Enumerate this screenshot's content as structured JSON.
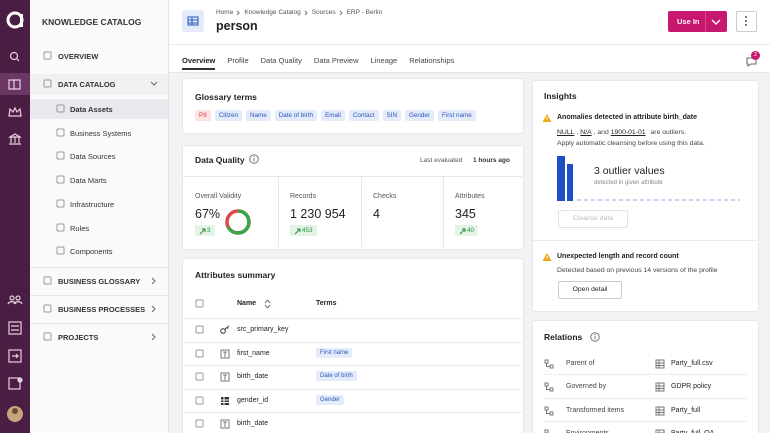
{
  "sidebar": {
    "title": "KNOWLEDGE CATALOG",
    "overview": "OVERVIEW",
    "data_catalog": "DATA CATALOG",
    "catalog_items": [
      "Data Assets",
      "Business Systems",
      "Data Sources",
      "Data Marts",
      "Infrastructure",
      "Rules",
      "Components"
    ],
    "sections": [
      "BUSINESS GLOSSARY",
      "BUSINESS PROCESSES",
      "PROJECTS"
    ]
  },
  "header": {
    "breadcrumb": [
      "Home",
      "Knowledge Catalog",
      "Sources",
      "ERP - Berlin"
    ],
    "title": "person",
    "button": "Use In"
  },
  "tabs": [
    "Overview",
    "Profile",
    "Data Quality",
    "Data Preview",
    "Lineage",
    "Relationships"
  ],
  "notification_count": 2,
  "glossary": {
    "title": "Glossary terms",
    "terms": [
      "PII",
      "Citizen",
      "Name",
      "Date of birth",
      "Email",
      "Contact",
      "SIN",
      "Gender",
      "First name"
    ]
  },
  "data_quality": {
    "title": "Data Quality",
    "evaluated_prefix": "Last evaluated",
    "evaluated": "1 hours ago",
    "stats": [
      {
        "label": "Overall Validity",
        "value": {
          "value": 67,
          "label": "67%"
        },
        "trend": 3
      },
      {
        "label": "Records",
        "value": "1 230 954",
        "trend": 453
      },
      {
        "label": "Checks",
        "value": 4
      },
      {
        "label": "Attributes",
        "value": 345,
        "trend": 40
      }
    ]
  },
  "attributes": {
    "title": "Attributes summary",
    "columns": [
      "Name",
      "Terms"
    ],
    "rows": [
      {
        "name": "src_primary_key"
      },
      {
        "name": "first_name",
        "term": "First name"
      },
      {
        "name": "birth_date",
        "term": "Date of birth"
      },
      {
        "name": "gender_id",
        "term": "Gender"
      },
      {
        "name": "birth_date"
      }
    ]
  },
  "insights": {
    "title": "Insights",
    "anomaly": {
      "title": "Anomalies detected in attribute birth_date",
      "outliers": [
        "NULL",
        "N/A",
        "1900-01-01"
      ],
      "separators": [
        ",",
        ", and"
      ],
      "suffix": "are outliers.",
      "note": "Apply automatic cleansing before using this data.",
      "count": "3 outlier values",
      "count_caption": "detected in given attribute",
      "button": "Cleanse data"
    },
    "length": {
      "title": "Unexpected length and record count",
      "text": "Detected based on previous 14 versions of the profile",
      "button": "Open detail"
    }
  },
  "relations": {
    "title": "Relations",
    "rows": [
      {
        "type": "Parent of",
        "target": "Party_full.csv"
      },
      {
        "type": "Governed by",
        "target": "GDPR policy"
      },
      {
        "type": "Transformed items",
        "target": "Party_full"
      },
      {
        "type": "Environments",
        "target": "Party_full_QA"
      }
    ]
  }
}
